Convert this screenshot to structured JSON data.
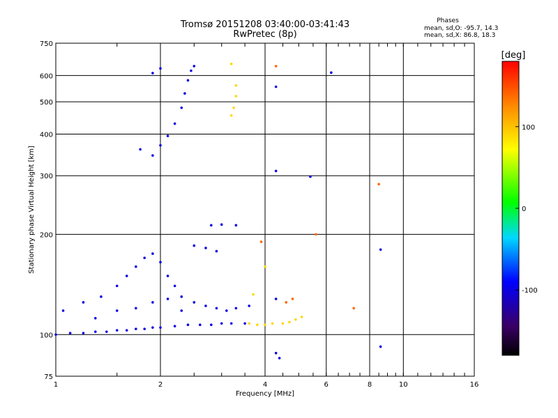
{
  "chart_data": {
    "type": "scatter",
    "title": "Tromsø 20151208 03:40:00-03:41:43",
    "subtitle": "RwPretec (8p)",
    "phase_box": {
      "title": "Phases",
      "line1": "mean, sd,O: -95.7, 14.3",
      "line2": "mean, sd,X:  86.8, 18.3"
    },
    "xlabel": "Frequency [MHz]",
    "ylabel": "Stationary phase Virtual Height [km]",
    "x_scale": "log",
    "y_scale": "log",
    "xlim": [
      1,
      16
    ],
    "ylim": [
      75,
      750
    ],
    "x_ticks": [
      1,
      2,
      4,
      6,
      8,
      10,
      16
    ],
    "y_ticks": [
      75,
      100,
      200,
      300,
      400,
      500,
      600,
      750
    ],
    "grid": true,
    "colorbar": {
      "label": "[deg]",
      "range": [
        -180,
        180
      ],
      "ticks": [
        100,
        0,
        -100
      ],
      "colormap": "rainbow (black-purple-blue-cyan-green-yellow-red)"
    },
    "series": [
      {
        "points": [
          [
            1.0,
            100
          ],
          [
            1.1,
            101
          ],
          [
            1.2,
            101
          ],
          [
            1.3,
            102
          ],
          [
            1.4,
            102
          ],
          [
            1.5,
            103
          ],
          [
            1.6,
            103
          ],
          [
            1.7,
            104
          ],
          [
            1.8,
            104
          ],
          [
            1.9,
            105
          ],
          [
            2.0,
            105
          ],
          [
            2.2,
            106
          ],
          [
            2.4,
            107
          ],
          [
            2.6,
            107
          ],
          [
            2.8,
            107
          ],
          [
            3.0,
            108
          ],
          [
            3.2,
            108
          ],
          [
            3.5,
            108
          ],
          [
            1.05,
            118
          ],
          [
            1.2,
            125
          ],
          [
            1.35,
            130
          ],
          [
            1.5,
            140
          ],
          [
            1.6,
            150
          ],
          [
            1.7,
            160
          ],
          [
            1.8,
            170
          ],
          [
            1.9,
            175
          ],
          [
            2.0,
            165
          ],
          [
            2.1,
            150
          ],
          [
            2.2,
            140
          ],
          [
            2.3,
            130
          ],
          [
            2.5,
            125
          ],
          [
            2.7,
            122
          ],
          [
            2.9,
            120
          ],
          [
            3.1,
            118
          ],
          [
            3.3,
            120
          ],
          [
            3.6,
            122
          ],
          [
            1.3,
            112
          ],
          [
            1.5,
            118
          ],
          [
            1.7,
            120
          ],
          [
            1.9,
            125
          ],
          [
            2.1,
            128
          ],
          [
            2.3,
            118
          ],
          [
            2.7,
            182
          ],
          [
            2.9,
            178
          ],
          [
            2.5,
            185
          ],
          [
            2.8,
            213
          ],
          [
            3.0,
            214
          ],
          [
            3.3,
            213
          ],
          [
            1.75,
            360
          ],
          [
            1.9,
            345
          ],
          [
            2.0,
            370
          ],
          [
            2.1,
            395
          ],
          [
            2.2,
            430
          ],
          [
            2.3,
            480
          ],
          [
            2.35,
            530
          ],
          [
            2.4,
            580
          ],
          [
            2.45,
            620
          ],
          [
            2.5,
            640
          ],
          [
            1.9,
            610
          ],
          [
            2.0,
            630
          ],
          [
            4.3,
            128
          ],
          [
            4.3,
            310
          ],
          [
            4.3,
            555
          ],
          [
            5.4,
            298
          ],
          [
            6.2,
            612
          ],
          [
            8.6,
            180
          ],
          [
            8.6,
            92
          ],
          [
            4.3,
            88
          ],
          [
            4.4,
            85
          ]
        ],
        "phase": -100
      },
      {
        "points": [
          [
            3.6,
            108
          ],
          [
            3.8,
            107
          ],
          [
            4.0,
            107
          ],
          [
            4.2,
            108
          ],
          [
            4.5,
            108
          ],
          [
            4.7,
            109
          ],
          [
            4.9,
            111
          ],
          [
            5.1,
            113
          ],
          [
            3.2,
            455
          ],
          [
            3.25,
            480
          ],
          [
            3.3,
            520
          ],
          [
            3.3,
            560
          ],
          [
            3.2,
            650
          ],
          [
            3.7,
            132
          ],
          [
            4.0,
            160
          ]
        ],
        "phase": 90
      },
      {
        "points": [
          [
            4.3,
            640
          ],
          [
            8.5,
            283
          ],
          [
            4.6,
            125
          ],
          [
            4.8,
            128
          ],
          [
            5.6,
            200
          ],
          [
            7.2,
            120
          ],
          [
            3.9,
            190
          ]
        ],
        "phase": 140
      }
    ]
  }
}
